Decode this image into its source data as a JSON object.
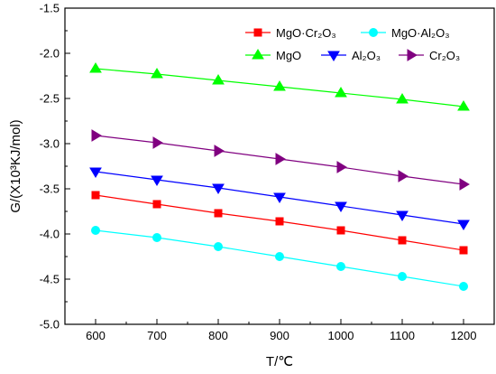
{
  "chart_data": {
    "type": "line",
    "xlabel": "T/℃",
    "ylabel": "G/(X10³KJ/mol)",
    "xlim": [
      550,
      1250
    ],
    "ylim": [
      -5.0,
      -1.5
    ],
    "x_ticks": [
      "600",
      "700",
      "800",
      "900",
      "1000",
      "1100",
      "1200"
    ],
    "y_ticks": [
      "-1.5",
      "-2.0",
      "-2.5",
      "-3.0",
      "-3.5",
      "-4.0",
      "-4.5",
      "-5.0"
    ],
    "x": [
      600,
      700,
      800,
      900,
      1000,
      1100,
      1200
    ],
    "grid": false,
    "legend_placement": "top-right",
    "series": [
      {
        "name": "MgO·Cr₂O₃",
        "color": "#ff0000",
        "marker": "square",
        "values": [
          -3.57,
          -3.67,
          -3.77,
          -3.86,
          -3.96,
          -4.07,
          -4.18
        ]
      },
      {
        "name": "MgO·Al₂O₃",
        "color": "#00ffff",
        "marker": "circle",
        "values": [
          -3.96,
          -4.04,
          -4.14,
          -4.25,
          -4.36,
          -4.47,
          -4.58
        ]
      },
      {
        "name": "MgO",
        "color": "#00ff00",
        "marker": "triangle-up",
        "values": [
          -2.17,
          -2.23,
          -2.3,
          -2.37,
          -2.44,
          -2.51,
          -2.59
        ]
      },
      {
        "name": "Al₂O₃",
        "color": "#0000ff",
        "marker": "triangle-down",
        "values": [
          -3.31,
          -3.4,
          -3.49,
          -3.59,
          -3.69,
          -3.79,
          -3.89
        ]
      },
      {
        "name": "Cr₂O₃",
        "color": "#800080",
        "marker": "triangle-right",
        "values": [
          -2.91,
          -2.99,
          -3.08,
          -3.17,
          -3.26,
          -3.36,
          -3.45
        ]
      }
    ]
  }
}
